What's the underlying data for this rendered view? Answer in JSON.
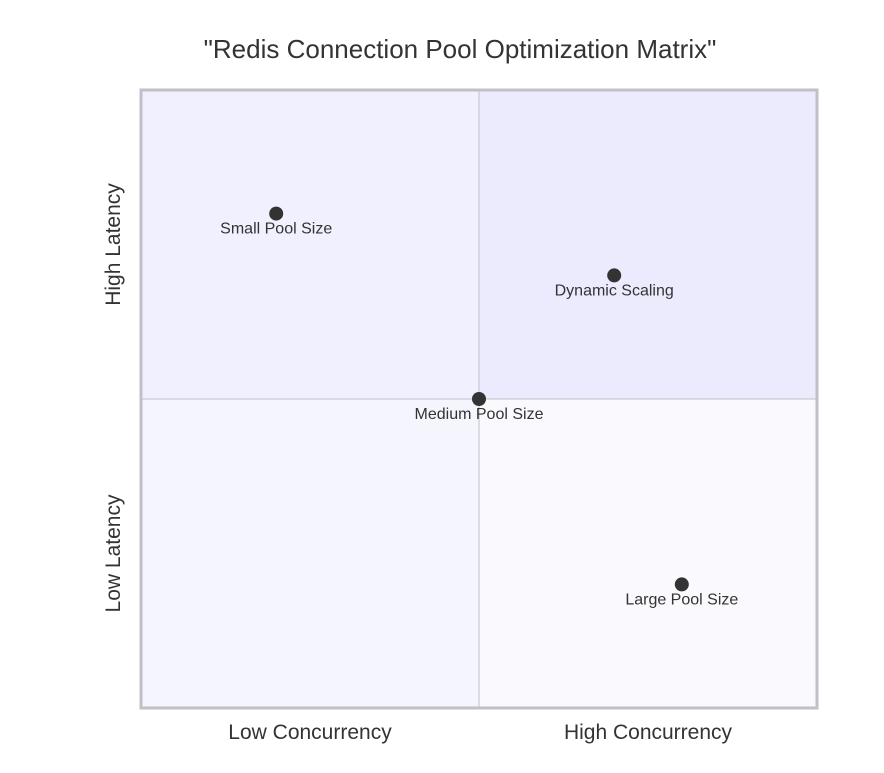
{
  "chart_data": {
    "type": "scatter",
    "title": "\"Redis Connection Pool Optimization Matrix\"",
    "x_axis": {
      "low_label": "Low Concurrency",
      "high_label": "High Concurrency",
      "range": [
        0,
        1
      ]
    },
    "y_axis": {
      "low_label": "Low Latency",
      "high_label": "High Latency",
      "range": [
        0,
        1
      ]
    },
    "quadrant_colors": {
      "top_left": "#f0f0fe",
      "top_right": "#ebebfd",
      "bottom_left": "#f5f5fe",
      "bottom_right": "#f9f9fe"
    },
    "border_color": "#c0c0c8",
    "divider_color": "#c0c0c8",
    "point_color": "#333333",
    "points": [
      {
        "label": "Small Pool Size",
        "x": 0.2,
        "y": 0.8
      },
      {
        "label": "Medium Pool Size",
        "x": 0.5,
        "y": 0.5
      },
      {
        "label": "Large Pool Size",
        "x": 0.8,
        "y": 0.2
      },
      {
        "label": "Dynamic Scaling",
        "x": 0.7,
        "y": 0.7
      }
    ]
  }
}
